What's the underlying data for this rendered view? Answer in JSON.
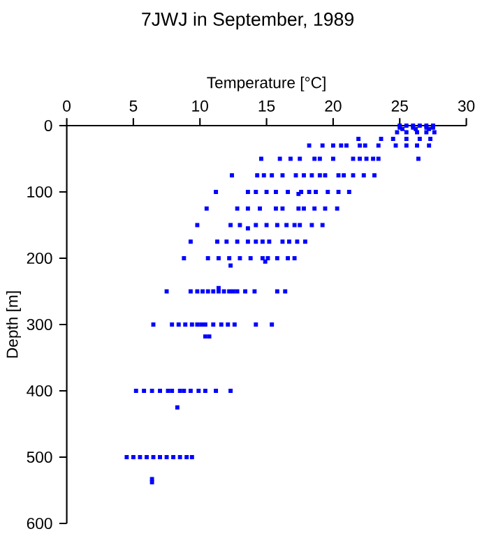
{
  "chart_data": {
    "type": "scatter",
    "title": "7JWJ in September, 1989",
    "xlabel": "Temperature [°C]",
    "ylabel": "Depth [m]",
    "x": [
      25,
      25.5,
      26,
      26.5,
      27,
      27.5,
      25,
      26,
      27,
      27.5,
      25.2,
      26.2,
      27.2,
      24.8,
      25.5,
      26.3,
      27,
      27.6,
      21.9,
      23.6,
      24.5,
      25.5,
      26.5,
      27.3,
      18.2,
      19.2,
      20,
      20.6,
      21,
      22,
      22.4,
      23.4,
      24.7,
      25.5,
      26.3,
      27.2,
      14.6,
      16,
      16.8,
      17.5,
      18.6,
      19,
      20,
      21.5,
      22,
      22.5,
      23,
      23.4,
      26.4,
      12.4,
      14.3,
      14.8,
      15.4,
      16.2,
      17.2,
      17.8,
      18.4,
      19,
      19.4,
      20.4,
      20.8,
      21.5,
      22.3,
      23.1,
      11.2,
      13.6,
      14.2,
      15,
      15.7,
      16.6,
      17.6,
      18.2,
      18.7,
      19.6,
      20.4,
      21.2,
      17.4,
      10.5,
      12.8,
      13.6,
      14.5,
      15.7,
      16.2,
      17.4,
      17.8,
      18.6,
      19.4,
      20.3,
      9.8,
      12.3,
      13,
      14.2,
      15,
      15.8,
      16.5,
      17.1,
      17.5,
      18.4,
      19.2,
      13.6,
      9.3,
      11.3,
      12,
      12.8,
      13.6,
      14.2,
      14.7,
      15.2,
      16.2,
      16.7,
      17.3,
      17.9,
      8.8,
      10.6,
      11.4,
      12.2,
      13,
      13.8,
      14.7,
      15.1,
      15.8,
      16.6,
      17.1,
      14.9,
      12.3,
      11.4,
      7.5,
      9.3,
      9.8,
      10.2,
      10.6,
      11,
      11.4,
      11.8,
      12.2,
      12.5,
      12.8,
      13.4,
      14.1,
      15.8,
      16.4,
      6.5,
      7.9,
      8.4,
      8.9,
      9.4,
      9.8,
      10.1,
      10.4,
      11,
      11.6,
      12.1,
      12.6,
      14.2,
      15.4,
      10.4,
      10.7,
      5.2,
      5.8,
      6.4,
      7,
      7.6,
      7.9,
      8.5,
      8.8,
      9.3,
      9.9,
      10.4,
      11.2,
      12.3,
      8.3,
      4.5,
      5,
      5.5,
      6,
      6.5,
      7,
      7.5,
      8,
      8.5,
      9,
      9.4,
      6.4,
      6.4
    ],
    "values": [
      0,
      0,
      0,
      0,
      0,
      0,
      3,
      3,
      3,
      3,
      5,
      5,
      5,
      10,
      10,
      10,
      10,
      10,
      20,
      20,
      20,
      20,
      20,
      20,
      30,
      30,
      30,
      30,
      30,
      30,
      30,
      30,
      30,
      30,
      30,
      30,
      50,
      50,
      50,
      50,
      50,
      50,
      50,
      50,
      50,
      50,
      50,
      50,
      50,
      75,
      75,
      75,
      75,
      75,
      75,
      75,
      75,
      75,
      75,
      75,
      75,
      75,
      75,
      75,
      100,
      100,
      100,
      100,
      100,
      100,
      100,
      100,
      100,
      100,
      100,
      100,
      103,
      125,
      125,
      125,
      125,
      125,
      125,
      125,
      125,
      125,
      125,
      125,
      150,
      150,
      150,
      150,
      150,
      150,
      150,
      150,
      150,
      150,
      150,
      155,
      175,
      175,
      175,
      175,
      175,
      175,
      175,
      175,
      175,
      175,
      175,
      175,
      200,
      200,
      200,
      200,
      200,
      200,
      200,
      200,
      200,
      200,
      200,
      205,
      211,
      245,
      250,
      250,
      250,
      250,
      250,
      250,
      250,
      250,
      250,
      250,
      250,
      250,
      250,
      250,
      250,
      300,
      300,
      300,
      300,
      300,
      300,
      300,
      300,
      300,
      300,
      300,
      300,
      300,
      300,
      318,
      318,
      400,
      400,
      400,
      400,
      400,
      400,
      400,
      400,
      400,
      400,
      400,
      400,
      400,
      425,
      500,
      500,
      500,
      500,
      500,
      500,
      500,
      500,
      500,
      500,
      500,
      533,
      538
    ],
    "color": "#0000ff",
    "marker": "square",
    "xlim": [
      0,
      30
    ],
    "xticks": [
      0,
      5,
      10,
      15,
      20,
      25,
      30
    ],
    "ylim": [
      600,
      0
    ],
    "yticks": [
      0,
      100,
      200,
      300,
      400,
      500,
      600
    ]
  }
}
